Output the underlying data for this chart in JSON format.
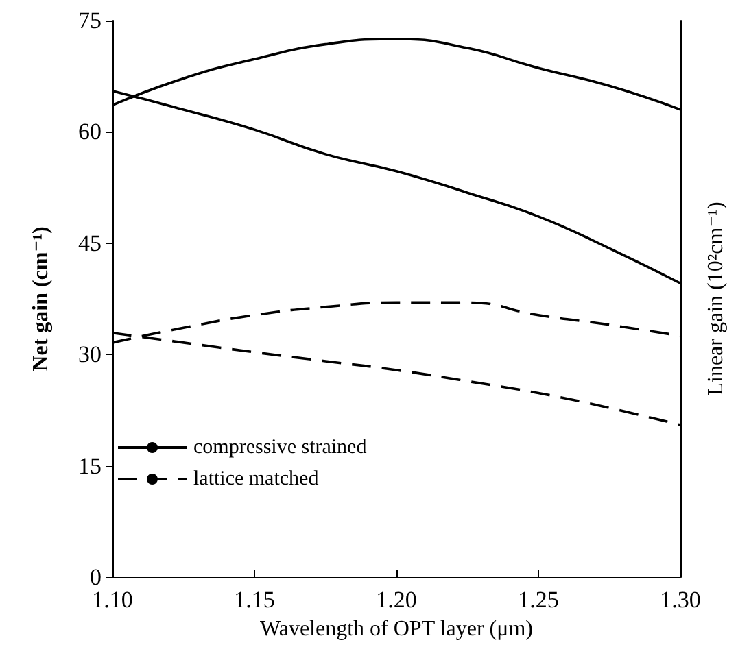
{
  "chart_data": {
    "type": "line",
    "xlabel": "Wavelength of OPT layer (μm)",
    "ylabel": "Net gain (cm⁻¹)",
    "y2label": "Linear gain (10²cm⁻¹)",
    "x": [
      1.1,
      1.125,
      1.15,
      1.175,
      1.2,
      1.225,
      1.25,
      1.275,
      1.3
    ],
    "series": [
      {
        "name": "compressive strained",
        "color": "#000000",
        "line_style": "solid",
        "values": [
          63.6,
          67.2,
          69.8,
          71.8,
          72.5,
          71.3,
          68.6,
          66.2,
          63.0
        ]
      },
      {
        "color": "#000000",
        "line_style": "solid",
        "values": [
          65.5,
          63.0,
          60.3,
          57.0,
          54.7,
          51.8,
          48.6,
          44.3,
          39.6
        ]
      },
      {
        "name": "lattice matched",
        "color": "#000000",
        "line_style": "dashed",
        "values": [
          31.6,
          33.6,
          35.3,
          36.4,
          37.0,
          37.0,
          35.3,
          34.0,
          32.5
        ]
      },
      {
        "color": "#000000",
        "line_style": "dashed",
        "values": [
          32.9,
          31.6,
          30.3,
          29.1,
          27.9,
          26.4,
          24.8,
          22.8,
          20.5
        ]
      }
    ],
    "xlim": [
      1.1,
      1.3
    ],
    "xticks": [
      {
        "value": 1.1,
        "label": "1.10"
      },
      {
        "value": 1.15,
        "label": "1.15"
      },
      {
        "value": 1.2,
        "label": "1.20"
      },
      {
        "value": 1.25,
        "label": "1.25"
      },
      {
        "value": 1.3,
        "label": "1.30"
      }
    ],
    "ylim": [
      0,
      75
    ],
    "yticks": [
      0,
      15,
      30,
      45,
      60,
      75
    ],
    "grid": false,
    "legend": "bottom left",
    "marker": "none"
  }
}
